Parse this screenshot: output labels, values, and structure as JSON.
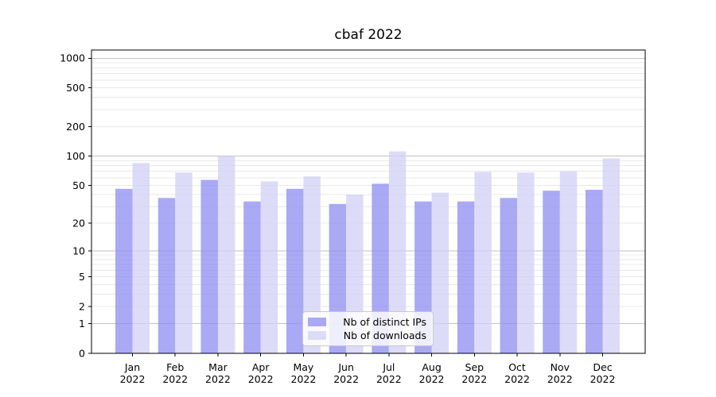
{
  "figure": {
    "title": "cbaf 2022",
    "background": "#ffffff"
  },
  "chart_data": {
    "type": "bar",
    "title": "cbaf 2022",
    "categories": [
      "Jan",
      "Feb",
      "Mar",
      "Apr",
      "May",
      "Jun",
      "Jul",
      "Aug",
      "Sep",
      "Oct",
      "Nov",
      "Dec"
    ],
    "category_year": "2022",
    "series": [
      {
        "name": "Nb of distinct IPs",
        "values": [
          46,
          37,
          57,
          34,
          46,
          32,
          52,
          34,
          34,
          37,
          44,
          45
        ],
        "fill": "rgba(140,140,240,0.75)",
        "legend_swatch": "#a9a9f4"
      },
      {
        "name": "Nb of downloads",
        "values": [
          85,
          68,
          100,
          55,
          62,
          40,
          112,
          42,
          69,
          68,
          70,
          95
        ],
        "fill": "rgba(208,208,246,0.75)",
        "legend_swatch": "#dcdcf9"
      }
    ],
    "y_ticks": [
      1000,
      500,
      200,
      100,
      50,
      20,
      10,
      5,
      2,
      1,
      0
    ],
    "y_major_gridlines": [
      1,
      10,
      100,
      1000
    ],
    "y_minor_gridlines": [
      2,
      3,
      4,
      5,
      6,
      7,
      8,
      9,
      20,
      30,
      40,
      50,
      60,
      70,
      80,
      90,
      200,
      300,
      400,
      500,
      600,
      700,
      800,
      900
    ],
    "y_scale": "log10(1+y)",
    "ylim": [
      0,
      1200
    ],
    "grid": true,
    "legend_position": "lower center",
    "colors": {
      "major_grid": "#c2c2c2",
      "minor_grid": "#e9e9e9",
      "spine": "#000000",
      "text": "#000000"
    }
  }
}
